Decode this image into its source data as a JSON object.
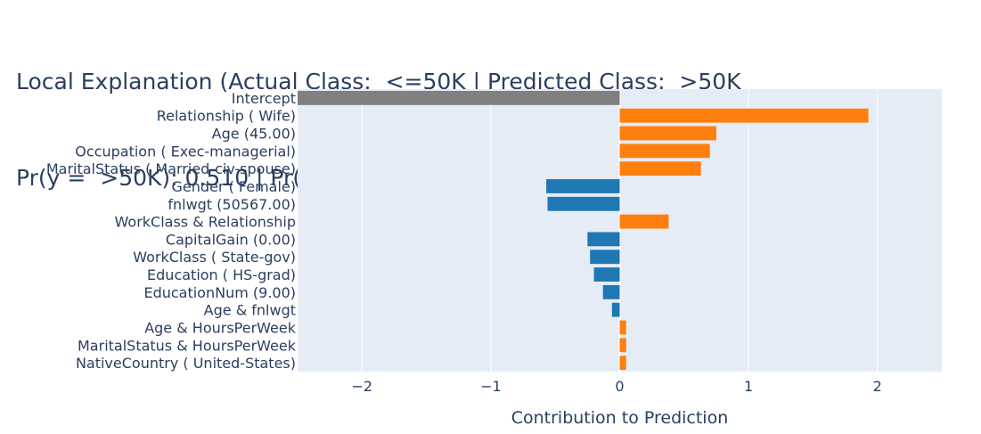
{
  "chart_data": {
    "type": "bar",
    "orientation": "horizontal",
    "title_line1": "Local Explanation (Actual Class:  <=50K | Predicted Class:  >50K",
    "title_line2": "Pr(y =  >50K): 0.510 | Pr(y = 0): 0.490)",
    "xlabel": "Contribution to Prediction",
    "ylabel": "",
    "xlim": [
      -2.5,
      2.5
    ],
    "xticks": [
      -2,
      -1,
      0,
      1,
      2
    ],
    "xtick_labels": [
      "−2",
      "−1",
      "0",
      "1",
      "2"
    ],
    "grid": true,
    "categories": [
      "Intercept",
      "Relationship ( Wife)",
      "Age (45.00)",
      "Occupation ( Exec-managerial)",
      "MaritalStatus ( Married-civ-spouse)",
      "Gender ( Female)",
      "fnlwgt (50567.00)",
      "WorkClass & Relationship",
      "CapitalGain (0.00)",
      "WorkClass ( State-gov)",
      "Education ( HS-grad)",
      "EducationNum (9.00)",
      "Age & fnlwgt",
      "Age & HoursPerWeek",
      "MaritalStatus & HoursPerWeek",
      "NativeCountry ( United-States)"
    ],
    "values": [
      -2.5,
      1.93,
      0.75,
      0.7,
      0.63,
      -0.57,
      -0.56,
      0.38,
      -0.25,
      -0.23,
      -0.2,
      -0.13,
      -0.06,
      0.05,
      0.05,
      0.05
    ],
    "colors": {
      "intercept": "#808080",
      "positive": "#ff7f0e",
      "negative": "#1f77b4",
      "plot_bg": "#e5ecf6",
      "grid": "#ffffff",
      "text": "#2a3f5f"
    }
  }
}
